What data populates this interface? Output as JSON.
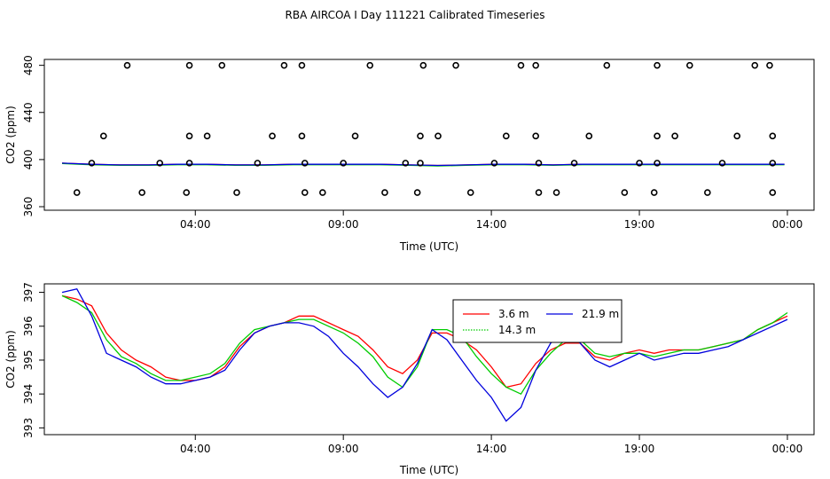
{
  "chart_data": [
    {
      "type": "scatter",
      "title": "RBA AIRCOA I  Day 111221  Calibrated Timeseries",
      "xlabel": "Time (UTC)",
      "ylabel": "CO2 (ppm)",
      "xlim": [
        -1.1,
        24.9
      ],
      "ylim": [
        357,
        485
      ],
      "x_ticks": [
        4,
        9,
        14,
        19,
        24
      ],
      "x_tick_labels": [
        "04:00",
        "09:00",
        "14:00",
        "19:00",
        "00:00"
      ],
      "y_ticks": [
        360,
        400,
        440,
        480
      ],
      "y_tick_labels": [
        "360",
        "400",
        "440",
        "480"
      ],
      "points_480": [
        1.7,
        3.8,
        4.9,
        7.0,
        7.6,
        9.9,
        11.7,
        12.8,
        15.0,
        15.5,
        17.9,
        19.6,
        20.7,
        22.9,
        23.4
      ],
      "points_420": [
        0.9,
        3.8,
        4.4,
        6.6,
        7.6,
        9.4,
        11.6,
        12.2,
        14.5,
        15.5,
        17.3,
        19.6,
        20.2,
        22.3,
        23.5
      ],
      "points_397": [
        0.5,
        2.8,
        3.8,
        6.1,
        7.7,
        9.0,
        11.1,
        11.6,
        14.1,
        15.6,
        16.8,
        19.0,
        19.6,
        21.8,
        23.5
      ],
      "points_372": [
        0.0,
        2.2,
        3.7,
        5.4,
        7.7,
        8.3,
        10.4,
        11.5,
        13.3,
        15.6,
        16.2,
        18.5,
        19.5,
        21.3,
        23.5
      ],
      "series": [
        {
          "name": "3.6 m",
          "color": "#ff0000",
          "values": [
            397,
            396,
            395.5,
            395.5,
            396,
            396,
            395.5,
            395.5,
            396,
            396,
            396,
            396,
            395.5,
            395,
            395.5,
            396,
            396,
            395.5,
            396,
            396,
            396,
            396,
            396,
            396,
            396,
            396
          ]
        },
        {
          "name": "14.3 m",
          "color": "#00cc00",
          "values": [
            397,
            396,
            395.5,
            395.5,
            396,
            396,
            395.5,
            395.5,
            396,
            396,
            396,
            396,
            395.5,
            395,
            395.5,
            396,
            396,
            395.5,
            396,
            396,
            396,
            396,
            396,
            396,
            396,
            396
          ]
        },
        {
          "name": "21.9 m",
          "color": "#0000dd",
          "values": [
            397,
            396,
            395.5,
            395.5,
            396,
            396,
            395.5,
            395.5,
            396,
            396,
            396,
            396,
            395.5,
            395,
            395.5,
            396,
            396,
            395.5,
            396,
            396,
            396,
            396,
            396,
            396,
            396,
            396
          ]
        }
      ]
    },
    {
      "type": "line",
      "xlabel": "Time (UTC)",
      "ylabel": "CO2 (ppm)",
      "xlim": [
        -1.1,
        24.9
      ],
      "ylim": [
        392.8,
        397.25
      ],
      "x_ticks": [
        4,
        9,
        14,
        19,
        24
      ],
      "x_tick_labels": [
        "04:00",
        "09:00",
        "14:00",
        "19:00",
        "00:00"
      ],
      "y_ticks": [
        393,
        394,
        395,
        396,
        397
      ],
      "y_tick_labels": [
        "393",
        "394",
        "395",
        "396",
        "397"
      ],
      "legend": {
        "position": "top-center",
        "entries": [
          "3.6 m",
          "14.3 m",
          "21.9 m"
        ]
      },
      "x": [
        -0.5,
        0,
        0.5,
        1,
        1.5,
        2,
        2.5,
        3,
        3.5,
        4,
        4.5,
        5,
        5.5,
        6,
        6.5,
        7,
        7.5,
        8,
        8.5,
        9,
        9.5,
        10,
        10.5,
        11,
        11.5,
        12,
        12.5,
        13,
        13.5,
        14,
        14.5,
        15,
        15.5,
        16,
        16.5,
        17,
        17.5,
        18,
        18.5,
        19,
        19.5,
        20,
        20.5,
        21,
        21.5,
        22,
        22.5,
        23,
        23.5,
        24
      ],
      "series": [
        {
          "name": "3.6 m",
          "color": "#ff0000",
          "values": [
            396.9,
            396.8,
            396.6,
            395.8,
            395.3,
            395.0,
            394.8,
            394.5,
            394.4,
            394.4,
            394.5,
            394.8,
            395.4,
            395.8,
            396.0,
            396.1,
            396.3,
            396.3,
            396.1,
            395.9,
            395.7,
            395.3,
            394.8,
            394.6,
            395.0,
            395.8,
            395.8,
            395.6,
            395.3,
            394.8,
            394.2,
            394.3,
            394.9,
            395.3,
            395.5,
            395.5,
            395.1,
            395.0,
            395.2,
            395.3,
            395.2,
            395.3,
            395.3,
            395.3,
            395.4,
            395.5,
            395.6,
            395.9,
            396.1,
            396.3
          ]
        },
        {
          "name": "14.3 m",
          "color": "#00cc00",
          "values": [
            396.9,
            396.7,
            396.4,
            395.6,
            395.1,
            394.9,
            394.6,
            394.4,
            394.4,
            394.5,
            394.6,
            394.9,
            395.5,
            395.9,
            396.0,
            396.1,
            396.2,
            396.2,
            396.0,
            395.8,
            395.5,
            395.1,
            394.5,
            394.2,
            394.8,
            395.9,
            395.9,
            395.7,
            395.1,
            394.6,
            394.2,
            394.0,
            394.7,
            395.2,
            395.6,
            395.6,
            395.2,
            395.1,
            395.2,
            395.2,
            395.1,
            395.2,
            395.3,
            395.3,
            395.4,
            395.5,
            395.6,
            395.9,
            396.1,
            396.4
          ]
        },
        {
          "name": "21.9 m",
          "color": "#0000dd",
          "values": [
            397.0,
            397.1,
            396.3,
            395.2,
            395.0,
            394.8,
            394.5,
            394.3,
            394.3,
            394.4,
            394.5,
            394.7,
            395.3,
            395.8,
            396.0,
            396.1,
            396.1,
            396.0,
            395.7,
            395.2,
            394.8,
            394.3,
            393.9,
            394.2,
            394.9,
            395.9,
            395.6,
            395.0,
            394.4,
            393.9,
            393.2,
            393.6,
            394.7,
            395.5,
            395.8,
            395.5,
            395.0,
            394.8,
            395.0,
            395.2,
            395.0,
            395.1,
            395.2,
            395.2,
            395.3,
            395.4,
            395.6,
            395.8,
            396.0,
            396.2
          ]
        }
      ]
    }
  ]
}
